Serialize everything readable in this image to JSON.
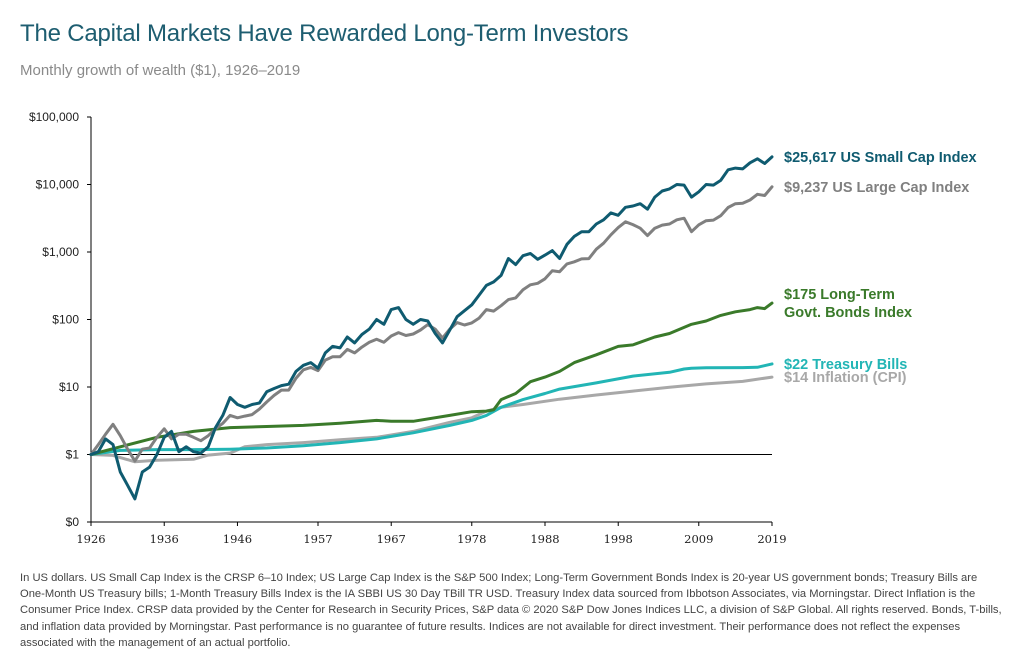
{
  "header": {
    "title": "The Capital Markets Have Rewarded Long-Term Investors",
    "subtitle": "Monthly growth of wealth ($1), 1926–2019"
  },
  "chart_data": {
    "type": "line",
    "title": "The Capital Markets Have Rewarded Long-Term Investors",
    "subtitle": "Monthly growth of wealth ($1), 1926–2019",
    "y_scale": "log",
    "ylim": [
      0.1,
      100000
    ],
    "xlim": [
      1926,
      2019
    ],
    "y_ticks": [
      {
        "value": 100000,
        "label": "$100,000"
      },
      {
        "value": 10000,
        "label": "$10,000"
      },
      {
        "value": 1000,
        "label": "$1,000"
      },
      {
        "value": 100,
        "label": "$100"
      },
      {
        "value": 10,
        "label": "$10"
      },
      {
        "value": 1,
        "label": "$1"
      },
      {
        "value": 0.1,
        "label": "$0"
      }
    ],
    "x_ticks": [
      {
        "value": 1926,
        "label": "1926"
      },
      {
        "value": 1936,
        "label": "1936"
      },
      {
        "value": 1946,
        "label": "1946"
      },
      {
        "value": 1957,
        "label": "1957"
      },
      {
        "value": 1967,
        "label": "1967"
      },
      {
        "value": 1978,
        "label": "1978"
      },
      {
        "value": 1988,
        "label": "1988"
      },
      {
        "value": 1998,
        "label": "1998"
      },
      {
        "value": 2009,
        "label": "2009"
      },
      {
        "value": 2019,
        "label": "2019"
      }
    ],
    "grid": false,
    "series": [
      {
        "name": "US Small Cap Index",
        "color": "#0f5b70",
        "label_lines": [
          "$25,617 US Small Cap Index"
        ],
        "points": [
          [
            1926,
            1
          ],
          [
            1927,
            1.1
          ],
          [
            1928,
            1.7
          ],
          [
            1929,
            1.4
          ],
          [
            1930,
            0.55
          ],
          [
            1931,
            0.35
          ],
          [
            1932,
            0.22
          ],
          [
            1933,
            0.55
          ],
          [
            1934,
            0.65
          ],
          [
            1935,
            1.0
          ],
          [
            1936,
            1.8
          ],
          [
            1937,
            2.2
          ],
          [
            1938,
            1.1
          ],
          [
            1939,
            1.3
          ],
          [
            1940,
            1.1
          ],
          [
            1941,
            1.05
          ],
          [
            1942,
            1.3
          ],
          [
            1943,
            2.5
          ],
          [
            1944,
            3.8
          ],
          [
            1945,
            7.0
          ],
          [
            1946,
            5.5
          ],
          [
            1947,
            5.0
          ],
          [
            1948,
            5.5
          ],
          [
            1949,
            5.8
          ],
          [
            1950,
            8.5
          ],
          [
            1951,
            9.5
          ],
          [
            1952,
            10.5
          ],
          [
            1953,
            11
          ],
          [
            1954,
            17
          ],
          [
            1955,
            21
          ],
          [
            1956,
            23
          ],
          [
            1957,
            19
          ],
          [
            1958,
            32
          ],
          [
            1959,
            40
          ],
          [
            1960,
            38
          ],
          [
            1961,
            55
          ],
          [
            1962,
            45
          ],
          [
            1963,
            60
          ],
          [
            1964,
            72
          ],
          [
            1965,
            100
          ],
          [
            1966,
            85
          ],
          [
            1967,
            140
          ],
          [
            1968,
            150
          ],
          [
            1969,
            100
          ],
          [
            1970,
            85
          ],
          [
            1971,
            100
          ],
          [
            1972,
            95
          ],
          [
            1973,
            62
          ],
          [
            1974,
            45
          ],
          [
            1975,
            70
          ],
          [
            1976,
            110
          ],
          [
            1977,
            135
          ],
          [
            1978,
            165
          ],
          [
            1979,
            230
          ],
          [
            1980,
            320
          ],
          [
            1981,
            360
          ],
          [
            1982,
            450
          ],
          [
            1983,
            800
          ],
          [
            1984,
            650
          ],
          [
            1985,
            880
          ],
          [
            1986,
            950
          ],
          [
            1987,
            780
          ],
          [
            1988,
            900
          ],
          [
            1989,
            1050
          ],
          [
            1990,
            800
          ],
          [
            1991,
            1300
          ],
          [
            1992,
            1700
          ],
          [
            1993,
            2000
          ],
          [
            1994,
            2000
          ],
          [
            1995,
            2600
          ],
          [
            1996,
            3000
          ],
          [
            1997,
            3800
          ],
          [
            1998,
            3500
          ],
          [
            1999,
            4600
          ],
          [
            2000,
            4800
          ],
          [
            2001,
            5200
          ],
          [
            2002,
            4300
          ],
          [
            2003,
            6500
          ],
          [
            2004,
            8000
          ],
          [
            2005,
            8600
          ],
          [
            2006,
            10000
          ],
          [
            2007,
            9800
          ],
          [
            2008,
            6500
          ],
          [
            2009,
            7800
          ],
          [
            2010,
            10000
          ],
          [
            2011,
            9800
          ],
          [
            2012,
            11500
          ],
          [
            2013,
            16500
          ],
          [
            2014,
            17500
          ],
          [
            2015,
            17000
          ],
          [
            2016,
            21000
          ],
          [
            2017,
            24000
          ],
          [
            2018,
            20500
          ],
          [
            2019,
            25617
          ]
        ]
      },
      {
        "name": "US Large Cap Index",
        "color": "#808080",
        "label_lines": [
          "$9,237 US Large Cap Index"
        ],
        "points": [
          [
            1926,
            1
          ],
          [
            1927,
            1.4
          ],
          [
            1928,
            2.0
          ],
          [
            1929,
            2.8
          ],
          [
            1930,
            1.9
          ],
          [
            1931,
            1.2
          ],
          [
            1932,
            0.8
          ],
          [
            1933,
            1.2
          ],
          [
            1934,
            1.25
          ],
          [
            1935,
            1.8
          ],
          [
            1936,
            2.4
          ],
          [
            1937,
            1.7
          ],
          [
            1938,
            2.0
          ],
          [
            1939,
            2.0
          ],
          [
            1940,
            1.8
          ],
          [
            1941,
            1.6
          ],
          [
            1942,
            1.9
          ],
          [
            1943,
            2.4
          ],
          [
            1944,
            2.9
          ],
          [
            1945,
            3.8
          ],
          [
            1946,
            3.5
          ],
          [
            1947,
            3.7
          ],
          [
            1948,
            3.9
          ],
          [
            1949,
            4.7
          ],
          [
            1950,
            6.0
          ],
          [
            1951,
            7.5
          ],
          [
            1952,
            9.0
          ],
          [
            1953,
            9.0
          ],
          [
            1954,
            13.5
          ],
          [
            1955,
            18
          ],
          [
            1956,
            19.5
          ],
          [
            1957,
            17.5
          ],
          [
            1958,
            25
          ],
          [
            1959,
            28
          ],
          [
            1960,
            28
          ],
          [
            1961,
            36
          ],
          [
            1962,
            32
          ],
          [
            1963,
            39
          ],
          [
            1964,
            46
          ],
          [
            1965,
            51
          ],
          [
            1966,
            46
          ],
          [
            1967,
            57
          ],
          [
            1968,
            64
          ],
          [
            1969,
            58
          ],
          [
            1970,
            61
          ],
          [
            1971,
            70
          ],
          [
            1972,
            84
          ],
          [
            1973,
            72
          ],
          [
            1974,
            53
          ],
          [
            1975,
            72
          ],
          [
            1976,
            90
          ],
          [
            1977,
            83
          ],
          [
            1978,
            89
          ],
          [
            1979,
            105
          ],
          [
            1980,
            140
          ],
          [
            1981,
            133
          ],
          [
            1982,
            160
          ],
          [
            1983,
            197
          ],
          [
            1984,
            209
          ],
          [
            1985,
            276
          ],
          [
            1986,
            327
          ],
          [
            1987,
            344
          ],
          [
            1988,
            401
          ],
          [
            1989,
            527
          ],
          [
            1990,
            510
          ],
          [
            1991,
            666
          ],
          [
            1992,
            717
          ],
          [
            1993,
            789
          ],
          [
            1994,
            799
          ],
          [
            1995,
            1100
          ],
          [
            1996,
            1350
          ],
          [
            1997,
            1800
          ],
          [
            1998,
            2300
          ],
          [
            1999,
            2800
          ],
          [
            2000,
            2550
          ],
          [
            2001,
            2250
          ],
          [
            2002,
            1750
          ],
          [
            2003,
            2250
          ],
          [
            2004,
            2500
          ],
          [
            2005,
            2600
          ],
          [
            2006,
            3000
          ],
          [
            2007,
            3170
          ],
          [
            2008,
            2000
          ],
          [
            2009,
            2530
          ],
          [
            2010,
            2910
          ],
          [
            2011,
            2970
          ],
          [
            2012,
            3450
          ],
          [
            2013,
            4560
          ],
          [
            2014,
            5190
          ],
          [
            2015,
            5260
          ],
          [
            2016,
            5890
          ],
          [
            2017,
            7170
          ],
          [
            2018,
            6860
          ],
          [
            2019,
            9237
          ]
        ]
      },
      {
        "name": "Long-Term Govt. Bonds Index",
        "color": "#3a7a2a",
        "label_lines": [
          "$175 Long-Term",
          "Govt. Bonds Index"
        ],
        "points": [
          [
            1926,
            1
          ],
          [
            1930,
            1.3
          ],
          [
            1935,
            1.8
          ],
          [
            1940,
            2.2
          ],
          [
            1945,
            2.5
          ],
          [
            1950,
            2.6
          ],
          [
            1955,
            2.7
          ],
          [
            1960,
            2.9
          ],
          [
            1965,
            3.2
          ],
          [
            1967,
            3.1
          ],
          [
            1970,
            3.1
          ],
          [
            1975,
            3.8
          ],
          [
            1978,
            4.3
          ],
          [
            1980,
            4.4
          ],
          [
            1981,
            4.6
          ],
          [
            1982,
            6.5
          ],
          [
            1984,
            8.0
          ],
          [
            1986,
            12
          ],
          [
            1988,
            14
          ],
          [
            1990,
            17
          ],
          [
            1992,
            23
          ],
          [
            1995,
            30
          ],
          [
            1998,
            40
          ],
          [
            2000,
            42
          ],
          [
            2003,
            55
          ],
          [
            2005,
            62
          ],
          [
            2008,
            85
          ],
          [
            2010,
            95
          ],
          [
            2012,
            115
          ],
          [
            2014,
            130
          ],
          [
            2016,
            140
          ],
          [
            2017,
            150
          ],
          [
            2018,
            145
          ],
          [
            2019,
            175
          ]
        ]
      },
      {
        "name": "Treasury Bills",
        "color": "#22b5b5",
        "label_lines": [
          "$22 Treasury Bills"
        ],
        "points": [
          [
            1926,
            1
          ],
          [
            1930,
            1.15
          ],
          [
            1935,
            1.18
          ],
          [
            1940,
            1.18
          ],
          [
            1945,
            1.2
          ],
          [
            1950,
            1.25
          ],
          [
            1955,
            1.35
          ],
          [
            1960,
            1.5
          ],
          [
            1965,
            1.7
          ],
          [
            1970,
            2.1
          ],
          [
            1975,
            2.7
          ],
          [
            1978,
            3.2
          ],
          [
            1980,
            3.8
          ],
          [
            1982,
            5.0
          ],
          [
            1985,
            6.5
          ],
          [
            1988,
            8.0
          ],
          [
            1990,
            9.3
          ],
          [
            1995,
            11.5
          ],
          [
            2000,
            14.5
          ],
          [
            2005,
            16.5
          ],
          [
            2007,
            18.5
          ],
          [
            2008,
            19
          ],
          [
            2010,
            19.3
          ],
          [
            2015,
            19.4
          ],
          [
            2017,
            19.6
          ],
          [
            2019,
            22
          ]
        ]
      },
      {
        "name": "Inflation (CPI)",
        "color": "#a8a8a8",
        "label_lines": [
          "$14 Inflation (CPI)"
        ],
        "points": [
          [
            1926,
            1
          ],
          [
            1929,
            0.97
          ],
          [
            1932,
            0.78
          ],
          [
            1935,
            0.82
          ],
          [
            1940,
            0.85
          ],
          [
            1942,
            0.98
          ],
          [
            1945,
            1.05
          ],
          [
            1947,
            1.3
          ],
          [
            1950,
            1.4
          ],
          [
            1955,
            1.5
          ],
          [
            1960,
            1.65
          ],
          [
            1965,
            1.8
          ],
          [
            1970,
            2.2
          ],
          [
            1975,
            3.0
          ],
          [
            1978,
            3.5
          ],
          [
            1980,
            4.4
          ],
          [
            1982,
            5.0
          ],
          [
            1985,
            5.5
          ],
          [
            1990,
            6.6
          ],
          [
            1995,
            7.6
          ],
          [
            2000,
            8.7
          ],
          [
            2005,
            9.9
          ],
          [
            2010,
            11.1
          ],
          [
            2015,
            12.1
          ],
          [
            2019,
            14
          ]
        ]
      }
    ]
  },
  "footnote": "In US dollars. US Small Cap Index is the CRSP 6–10 Index; US Large Cap Index is the S&P 500 Index; Long-Term Government Bonds Index is 20-year US government bonds; Treasury Bills are One-Month US Treasury bills; 1-Month Treasury Bills Index is the IA SBBI US 30 Day TBill TR USD. Treasury Index data sourced from Ibbotson Associates, via Morningstar. Direct Inflation is the Consumer Price Index. CRSP data provided by the Center for Research in Security Prices, S&P data © 2020 S&P Dow Jones Indices LLC, a division of S&P Global. All rights reserved. Bonds, T-bills, and inflation data provided by Morningstar. Past performance is no guarantee of future results. Indices are not available for direct investment. Their performance does not reflect the expenses associated with the management of an actual portfolio."
}
